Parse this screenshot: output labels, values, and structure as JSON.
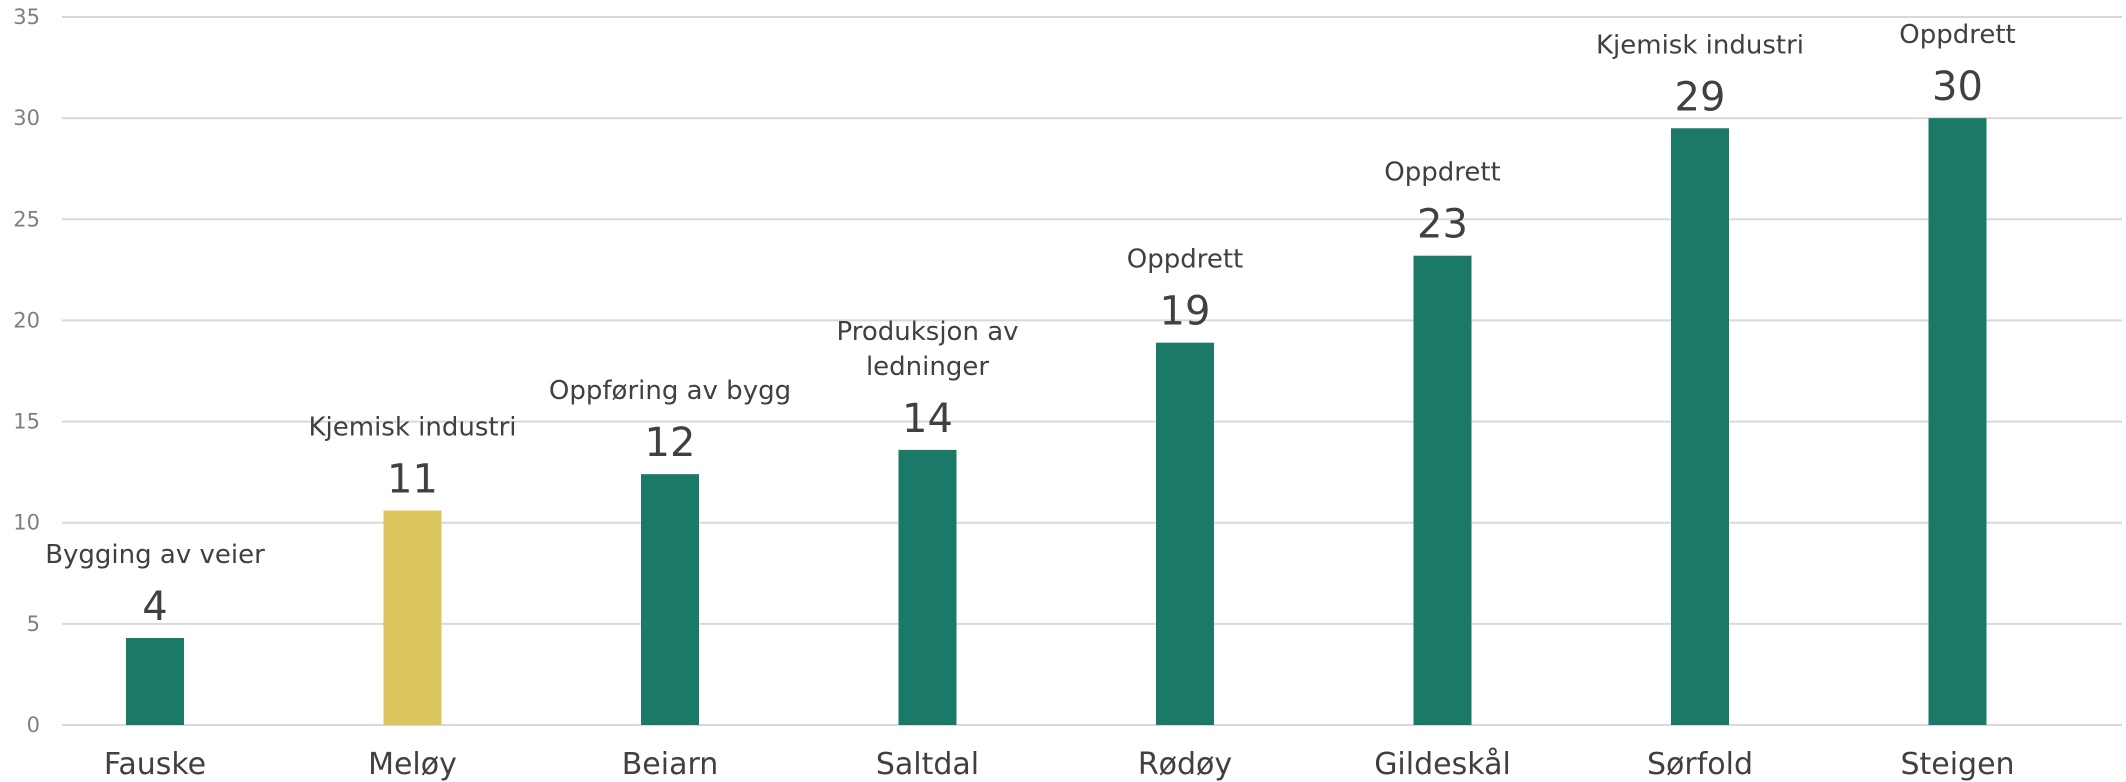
{
  "chart_data": {
    "type": "bar",
    "categories": [
      "Fauske",
      "Meløy",
      "Beiarn",
      "Saltdal",
      "Rødøy",
      "Gildeskål",
      "Sørfold",
      "Steigen"
    ],
    "values": [
      4.3,
      10.6,
      12.4,
      13.6,
      18.9,
      23.2,
      29.5,
      30.0
    ],
    "value_labels": [
      "4",
      "11",
      "12",
      "14",
      "19",
      "23",
      "29",
      "30"
    ],
    "category_labels": [
      [
        "Bygging av veier"
      ],
      [
        "Kjemisk industri"
      ],
      [
        "Oppføring av bygg"
      ],
      [
        "Produksjon av",
        "ledninger"
      ],
      [
        "Oppdrett"
      ],
      [
        "Oppdrett"
      ],
      [
        "Kjemisk industri"
      ],
      [
        "Oppdrett"
      ]
    ],
    "bar_colors": [
      "#1b7a67",
      "#dcc55c",
      "#1b7a67",
      "#1b7a67",
      "#1b7a67",
      "#1b7a67",
      "#1b7a67",
      "#1b7a67"
    ],
    "yticks": [
      0,
      5,
      10,
      15,
      20,
      25,
      30,
      35
    ],
    "ylim": [
      0,
      35
    ],
    "grid": true,
    "title": "",
    "xlabel": "",
    "ylabel": ""
  }
}
